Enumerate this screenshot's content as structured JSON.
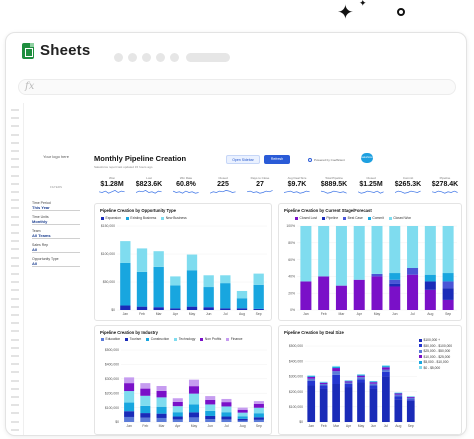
{
  "app": {
    "title": "Sheets"
  },
  "formula_bar": {
    "label": "fx"
  },
  "sidebar": {
    "logo_text": "Your logo here",
    "sub_text": "FILTERS",
    "filters": [
      {
        "label": "Time Period",
        "value": "This Year"
      },
      {
        "label": "Time Units",
        "value": "Monthly"
      },
      {
        "label": "Team",
        "value": "All Teams"
      },
      {
        "label": "Sales Rep",
        "value": "All"
      },
      {
        "label": "Opportunity Type",
        "value": "All"
      }
    ]
  },
  "dashboard": {
    "title": "Monthly Pipeline Creation",
    "subtitle": "Salesforce report last updated 15 hours ago",
    "open_sidebar_label": "Open Sidebar",
    "refresh_label": "Refresh",
    "powered_by": "Powered by Coefficient",
    "salesforce_logo": "salesforce"
  },
  "kpis": [
    {
      "label": "Won",
      "value": "$1.28M"
    },
    {
      "label": "Lost",
      "value": "$823.6K"
    },
    {
      "label": "Win Rate",
      "value": "60.8%"
    },
    {
      "label": "Closed",
      "value": "225"
    },
    {
      "label": "Days to Close",
      "value": "27"
    },
    {
      "label": "Avg Deal Size",
      "value": "$9.7K"
    },
    {
      "label": "Total Pipeline",
      "value": "$889.5K"
    },
    {
      "label": "Closed",
      "value": "$1.25M"
    },
    {
      "label": "Commit",
      "value": "$265.3K"
    },
    {
      "label": "Pipeline",
      "value": "$278.4K"
    }
  ],
  "colors": {
    "accent": "#2a5bd7",
    "sparkline": "#3b73e6"
  },
  "charts": [
    {
      "title": "Pipeline Creation by Opportunity Type",
      "chart_data": {
        "type": "bar",
        "stacked": true,
        "categories": [
          "Jan",
          "Feb",
          "Mar",
          "Apr",
          "May",
          "Jun",
          "Jul",
          "Aug",
          "Sep"
        ],
        "ylim": [
          0,
          150
        ],
        "yticks": [
          "$0",
          "$50,000",
          "$100,000",
          "$150,000"
        ],
        "series": [
          {
            "name": "Expansion",
            "color": "#1a2bb8",
            "values": [
              8,
              6,
              5,
              3,
              6,
              5,
              3,
              3,
              2
            ]
          },
          {
            "name": "Existing Business",
            "color": "#18a6df",
            "values": [
              76,
              62,
              72,
              41,
              65,
              36,
              45,
              18,
              43
            ]
          },
          {
            "name": "New Business",
            "color": "#7fdcef",
            "values": [
              39,
              42,
              28,
              16,
              28,
              21,
              14,
              13,
              20
            ]
          }
        ],
        "legend_position": "top-left",
        "grid": true
      }
    },
    {
      "title": "Pipeline Creation by Current Stage/Forecast",
      "chart_data": {
        "type": "bar",
        "stacked": true,
        "normalized": true,
        "categories": [
          "Jan",
          "Feb",
          "Mar",
          "Apr",
          "May",
          "Jun",
          "Jul",
          "Aug",
          "Sep"
        ],
        "ylim": [
          0,
          100
        ],
        "yticks": [
          "0%",
          "20%",
          "40%",
          "60%",
          "80%",
          "100%"
        ],
        "series": [
          {
            "name": "Closed Lost",
            "color": "#7a10c8",
            "values": [
              34,
              40,
              29,
              36,
              40,
              28,
              42,
              24,
              12
            ]
          },
          {
            "name": "Pipeline",
            "color": "#1a2bb8",
            "values": [
              0,
              0,
              0,
              0,
              0,
              3,
              0,
              10,
              14
            ]
          },
          {
            "name": "Best Case",
            "color": "#4a55d6",
            "values": [
              0,
              0,
              0,
              0,
              3,
              5,
              8,
              0,
              8
            ]
          },
          {
            "name": "Commit",
            "color": "#18a6df",
            "values": [
              0,
              0,
              0,
              0,
              0,
              8,
              0,
              8,
              10
            ]
          },
          {
            "name": "Closed Won",
            "color": "#7fdcef",
            "values": [
              66,
              60,
              71,
              64,
              57,
              56,
              50,
              58,
              56
            ]
          }
        ],
        "legend_position": "top-left",
        "grid": true
      }
    },
    {
      "title": "Pipeline Creation by Industry",
      "chart_data": {
        "type": "bar",
        "stacked": true,
        "categories": [
          "Jan",
          "Feb",
          "Mar",
          "Apr",
          "May",
          "Jun",
          "Jul",
          "Aug",
          "Sep"
        ],
        "ylim": [
          0,
          500
        ],
        "yticks": [
          "$0",
          "$100,000",
          "$200,000",
          "$300,000",
          "$400,000",
          "$500,000"
        ],
        "series": [
          {
            "name": "Education",
            "color": "#5b7bd8",
            "values": [
              35,
              30,
              28,
              18,
              32,
              20,
              18,
              10,
              15
            ]
          },
          {
            "name": "Tourism",
            "color": "#1a2bb8",
            "values": [
              40,
              32,
              30,
              20,
              35,
              22,
              20,
              12,
              18
            ]
          },
          {
            "name": "Construction",
            "color": "#18a6df",
            "values": [
              60,
              50,
              48,
              30,
              55,
              35,
              30,
              18,
              28
            ]
          },
          {
            "name": "Technology",
            "color": "#7fdcef",
            "values": [
              80,
              70,
              65,
              42,
              75,
              45,
              40,
              25,
              38
            ]
          },
          {
            "name": "Non Profits",
            "color": "#7a10c8",
            "values": [
              55,
              50,
              45,
              30,
              52,
              32,
              30,
              20,
              26
            ]
          },
          {
            "name": "Finance",
            "color": "#c69cf0",
            "values": [
              40,
              38,
              34,
              25,
              45,
              26,
              22,
              15,
              20
            ]
          }
        ],
        "legend_position": "top-left",
        "grid": true
      }
    },
    {
      "title": "Pipeline Creation by Deal Size",
      "chart_data": {
        "type": "bar",
        "stacked": true,
        "categories": [
          "Jan",
          "Feb",
          "Mar",
          "Apr",
          "May",
          "Jun",
          "Jul",
          "Aug",
          "Sep"
        ],
        "ylim": [
          0,
          500
        ],
        "yticks": [
          "$0",
          "$100,000",
          "$200,000",
          "$300,000",
          "$400,000",
          "$500,000"
        ],
        "series": [
          {
            "name": "$100,000 +",
            "color": "#1a2bb8",
            "values": [
              240,
              220,
              250,
              230,
              260,
              220,
              300,
              150,
              140
            ]
          },
          {
            "name": "$50,000 - $100,000",
            "color": "#2436d0",
            "values": [
              30,
              20,
              60,
              20,
              20,
              20,
              30,
              20,
              10
            ]
          },
          {
            "name": "$25,000 - $50,000",
            "color": "#5b7bd8",
            "values": [
              15,
              10,
              25,
              10,
              15,
              12,
              15,
              10,
              8
            ]
          },
          {
            "name": "$10,000 - $25,000",
            "color": "#7a10c8",
            "values": [
              12,
              8,
              20,
              8,
              10,
              10,
              15,
              8,
              6
            ]
          },
          {
            "name": "$5,000 - $10,000",
            "color": "#18a6df",
            "values": [
              6,
              4,
              8,
              4,
              6,
              5,
              8,
              4,
              3
            ]
          },
          {
            "name": "$0 - $5,000",
            "color": "#7fdcef",
            "values": [
              4,
              3,
              6,
              3,
              4,
              3,
              5,
              3,
              2
            ]
          }
        ],
        "legend_position": "right",
        "grid": true
      }
    }
  ]
}
